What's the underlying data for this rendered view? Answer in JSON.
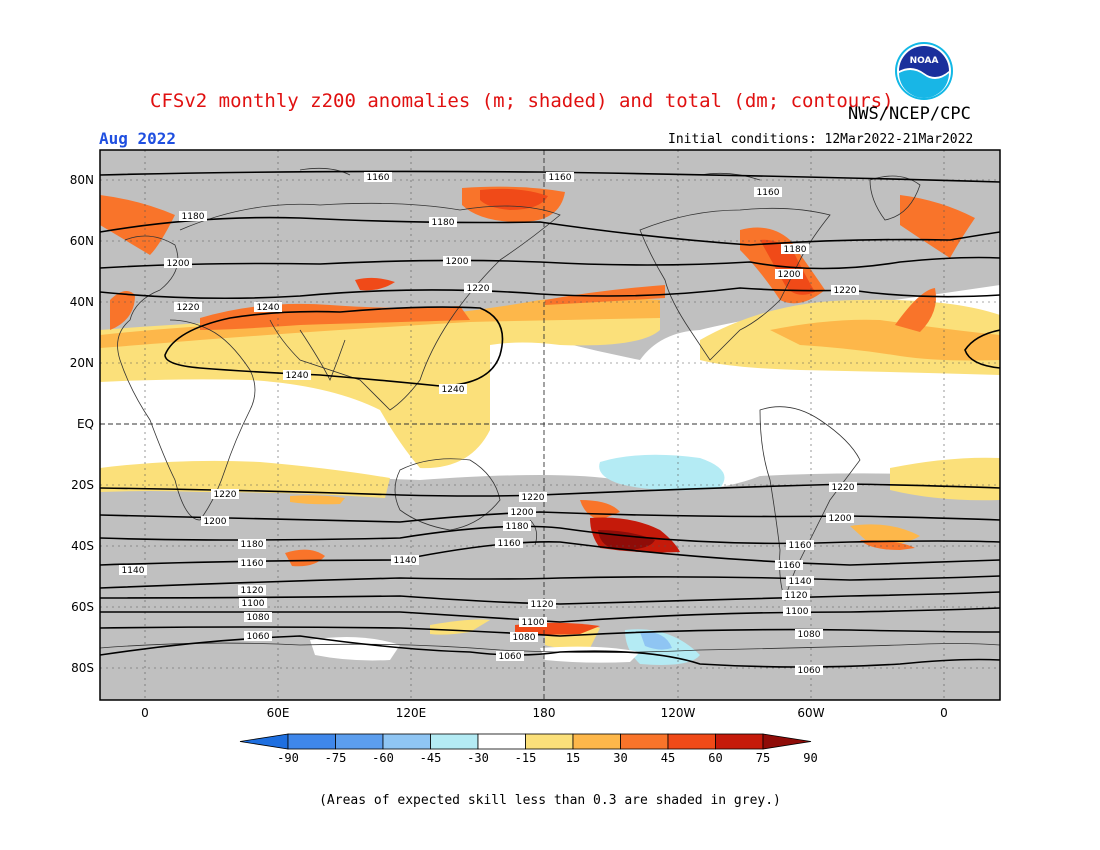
{
  "header": {
    "title": "CFSv2 monthly z200 anomalies (m; shaded) and total (dm; contours)",
    "agency": "NWS/NCEP/CPC",
    "month": "Aug 2022",
    "initial_conditions": "Initial conditions: 12Mar2022-21Mar2022",
    "logo_text": "NOAA"
  },
  "axes": {
    "lat_labels": [
      "80N",
      "60N",
      "40N",
      "20N",
      "EQ",
      "20S",
      "40S",
      "60S",
      "80S"
    ],
    "lon_labels": [
      "0",
      "60E",
      "120E",
      "180",
      "120W",
      "60W",
      "0"
    ]
  },
  "colorbar": {
    "ticks": [
      "-90",
      "-75",
      "-60",
      "-45",
      "-30",
      "-15",
      "15",
      "30",
      "45",
      "60",
      "75",
      "90"
    ],
    "colors": [
      "#1e6fe0",
      "#3f87ea",
      "#5c9eee",
      "#8fc5f3",
      "#b4ebf4",
      "#ffffff",
      "#fbe07a",
      "#fdb74a",
      "#f9742a",
      "#f04a18",
      "#c51a0a",
      "#8f0c08"
    ]
  },
  "contour_labels": [
    {
      "text": "1160"
    },
    {
      "text": "1180"
    },
    {
      "text": "1180"
    },
    {
      "text": "1160"
    },
    {
      "text": "1160"
    },
    {
      "text": "1200"
    },
    {
      "text": "1200"
    },
    {
      "text": "1200"
    },
    {
      "text": "1220"
    },
    {
      "text": "1220"
    },
    {
      "text": "1220"
    },
    {
      "text": "1240"
    },
    {
      "text": "1240"
    },
    {
      "text": "1240"
    },
    {
      "text": "1220"
    },
    {
      "text": "1220"
    },
    {
      "text": "1220"
    },
    {
      "text": "1200"
    },
    {
      "text": "1200"
    },
    {
      "text": "1200"
    },
    {
      "text": "1180"
    },
    {
      "text": "1180"
    },
    {
      "text": "1180"
    },
    {
      "text": "1160"
    },
    {
      "text": "1160"
    },
    {
      "text": "1160"
    },
    {
      "text": "1160"
    },
    {
      "text": "1140"
    },
    {
      "text": "1140"
    },
    {
      "text": "1140"
    },
    {
      "text": "1120"
    },
    {
      "text": "1120"
    },
    {
      "text": "1120"
    },
    {
      "text": "1100"
    },
    {
      "text": "1100"
    },
    {
      "text": "1100"
    },
    {
      "text": "1080"
    },
    {
      "text": "1080"
    },
    {
      "text": "1080"
    },
    {
      "text": "1060"
    },
    {
      "text": "1060"
    },
    {
      "text": "1060"
    }
  ],
  "caption": "(Areas of expected skill less than 0.3 are shaded in grey.)"
}
